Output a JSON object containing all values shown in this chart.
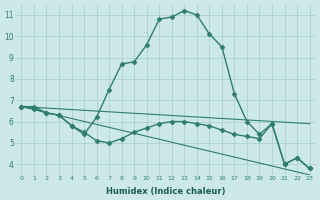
{
  "xlabel": "Humidex (Indice chaleur)",
  "background_color": "#cce8e8",
  "grid_color": "#aacccc",
  "line_color": "#2e7d6e",
  "xlim": [
    -0.5,
    23.5
  ],
  "ylim": [
    3.5,
    11.5
  ],
  "xticks": [
    0,
    1,
    2,
    3,
    4,
    5,
    6,
    7,
    8,
    9,
    10,
    11,
    12,
    13,
    14,
    15,
    16,
    17,
    18,
    19,
    20,
    21,
    22,
    23
  ],
  "yticks": [
    4,
    5,
    6,
    7,
    8,
    9,
    10,
    11
  ],
  "series": [
    {
      "x": [
        0,
        1,
        2,
        3,
        4,
        5,
        6,
        7,
        8,
        9,
        10,
        11,
        12,
        13,
        14,
        15,
        16,
        17,
        18,
        19,
        20,
        21,
        22,
        23
      ],
      "y": [
        6.7,
        6.7,
        6.4,
        6.3,
        5.8,
        5.4,
        6.2,
        7.5,
        8.7,
        8.8,
        9.6,
        10.8,
        10.9,
        11.2,
        11.0,
        10.1,
        9.5,
        7.3,
        6.0,
        5.4,
        5.9,
        4.0,
        4.3,
        3.8
      ],
      "marker": "D",
      "markersize": 2.5,
      "linewidth": 1.0
    },
    {
      "x": [
        0,
        23
      ],
      "y": [
        6.7,
        5.9
      ],
      "marker": null,
      "markersize": 0,
      "linewidth": 0.8
    },
    {
      "x": [
        0,
        23
      ],
      "y": [
        6.7,
        3.5
      ],
      "marker": null,
      "markersize": 0,
      "linewidth": 0.8
    },
    {
      "x": [
        0,
        1,
        2,
        3,
        4,
        5,
        6,
        7,
        8,
        9,
        10,
        11,
        12,
        13,
        14,
        15,
        16,
        17,
        18,
        19,
        20,
        21,
        22,
        23
      ],
      "y": [
        6.7,
        6.6,
        6.4,
        6.3,
        5.8,
        5.5,
        5.1,
        5.0,
        5.2,
        5.5,
        5.7,
        5.9,
        6.0,
        6.0,
        5.9,
        5.8,
        5.6,
        5.4,
        5.3,
        5.2,
        5.9,
        4.0,
        4.3,
        3.8
      ],
      "marker": "D",
      "markersize": 2.5,
      "linewidth": 1.0
    }
  ]
}
